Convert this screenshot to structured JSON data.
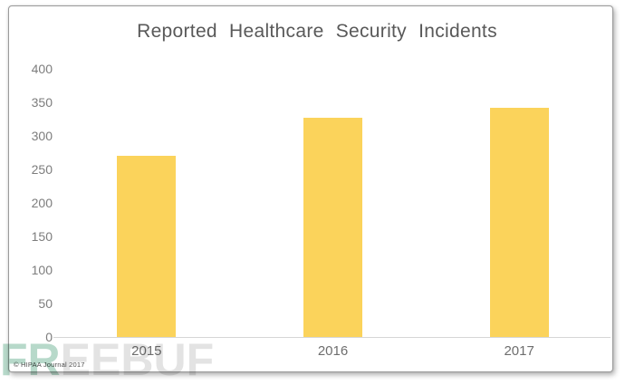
{
  "chart_data": {
    "type": "bar",
    "title": "Reported Healthcare Security Incidents",
    "categories": [
      "2015",
      "2016",
      "2017"
    ],
    "values": [
      270,
      327,
      342
    ],
    "xlabel": "",
    "ylabel": "",
    "ylim": [
      0,
      400
    ],
    "yticks": [
      0,
      50,
      100,
      150,
      200,
      250,
      300,
      350,
      400
    ],
    "grid": false,
    "legend": false,
    "bar_color": "#FBD35B",
    "title_color": "#595959",
    "axis_label_color": "#7d7d7d",
    "axis_line_color": "#d6d6d6"
  },
  "footer": {
    "copyright": "© HIPAA Journal 2017"
  },
  "watermark": {
    "green_part": "FR",
    "gray_part": "EEBUF",
    "green_color": "#b7d9ca",
    "gray_color": "#e3e3e3"
  }
}
